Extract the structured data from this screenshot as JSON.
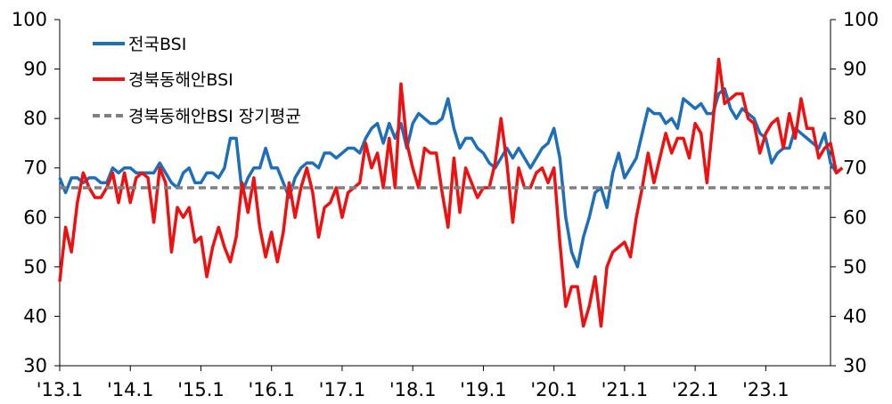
{
  "chart_data": {
    "type": "line",
    "title": "",
    "xlabel": "",
    "ylabel": "",
    "ylim": [
      30,
      100
    ],
    "yticks": [
      30,
      40,
      50,
      60,
      70,
      80,
      90,
      100
    ],
    "right_yticks": [
      30,
      40,
      50,
      60,
      70,
      80,
      90,
      100
    ],
    "grid": false,
    "legend_position": "top-left",
    "x_start": "2013-01",
    "x_end": "2023-12",
    "x_tick_labels": [
      "'13.1",
      "'14.1",
      "'15.1",
      "'16.1",
      "'17.1",
      "'18.1",
      "'19.1",
      "'20.1",
      "'21.1",
      "'22.1",
      "'23.1"
    ],
    "series": [
      {
        "name": "전국BSI",
        "color": "#1f6fb8",
        "style": "solid",
        "values": [
          68,
          65,
          68,
          68,
          67,
          68,
          68,
          67,
          67,
          70,
          69,
          70,
          70,
          69,
          69,
          69,
          69,
          71,
          69,
          67,
          66,
          69,
          70,
          67,
          67,
          69,
          69,
          68,
          70,
          76,
          76,
          65,
          68,
          70,
          70,
          74,
          70,
          70,
          67,
          64,
          68,
          70,
          71,
          71,
          70,
          73,
          73,
          72,
          73,
          74,
          74,
          73,
          76,
          78,
          79,
          75,
          79,
          76,
          79,
          74,
          79,
          81,
          80,
          79,
          79,
          80,
          84,
          78,
          74,
          76,
          76,
          74,
          73,
          71,
          70,
          72,
          74,
          72,
          74,
          72,
          70,
          72,
          74,
          75,
          78,
          72,
          60,
          53,
          50,
          56,
          60,
          65,
          66,
          62,
          69,
          73,
          68,
          70,
          72,
          77,
          82,
          81,
          81,
          79,
          80,
          78,
          84,
          83,
          82,
          83,
          81,
          81,
          85,
          86,
          82,
          80,
          82,
          81,
          80,
          77,
          76,
          71,
          73,
          74,
          74,
          78,
          77,
          76,
          75,
          74,
          77,
          71,
          69,
          70
        ]
      },
      {
        "name": "경북동해안BSI",
        "color": "#ee1111",
        "style": "solid",
        "values": [
          47,
          58,
          53,
          63,
          69,
          66,
          64,
          64,
          66,
          69,
          63,
          69,
          63,
          68,
          69,
          68,
          59,
          70,
          67,
          53,
          62,
          60,
          62,
          55,
          56,
          48,
          54,
          58,
          54,
          51,
          56,
          67,
          61,
          68,
          58,
          52,
          57,
          51,
          57,
          67,
          60,
          66,
          70,
          65,
          56,
          62,
          63,
          66,
          60,
          65,
          66,
          67,
          75,
          70,
          73,
          66,
          76,
          66,
          87,
          75,
          70,
          66,
          74,
          73,
          73,
          65,
          58,
          72,
          61,
          70,
          67,
          64,
          66,
          66,
          71,
          80,
          71,
          59,
          70,
          66,
          66,
          69,
          70,
          67,
          70,
          55,
          42,
          46,
          46,
          38,
          42,
          48,
          38,
          50,
          53,
          54,
          55,
          52,
          60,
          66,
          73,
          67,
          72,
          77,
          73,
          76,
          76,
          72,
          79,
          77,
          67,
          79,
          92,
          83,
          84,
          85,
          85,
          80,
          79,
          73,
          77,
          79,
          80,
          74,
          81,
          76,
          84,
          78,
          78,
          72,
          74,
          75,
          69,
          70
        ]
      },
      {
        "name": "경북동해안BSI 장기평균",
        "color": "#808080",
        "style": "dashed",
        "values": [
          66
        ]
      }
    ]
  }
}
